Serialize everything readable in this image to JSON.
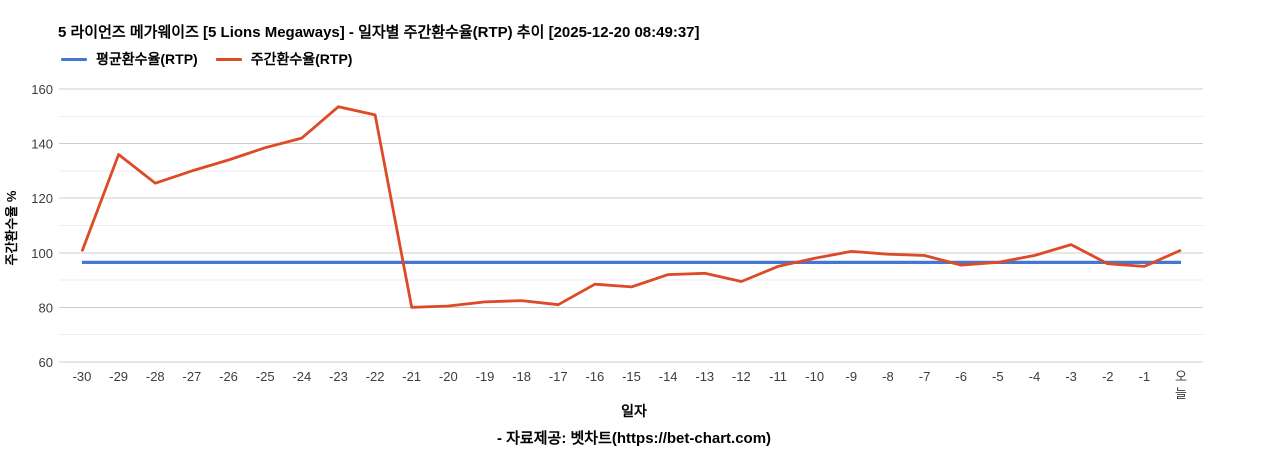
{
  "header": {
    "title": "5 라이언즈 메가웨이즈 [5 Lions Megaways] - 일자별 주간환수율(RTP) 추이 [2025-12-20 08:49:37]"
  },
  "legend": {
    "items": [
      {
        "label": "평균환수율(RTP)",
        "color": "#4377d6"
      },
      {
        "label": "주간환수율(RTP)",
        "color": "#dc4a26"
      }
    ]
  },
  "chart_data": {
    "type": "line",
    "title": "5 라이언즈 메가웨이즈 [5 Lions Megaways] - 일자별 주간환수율(RTP) 추이 [2025-12-20 08:49:37]",
    "categories": [
      "-30",
      "-29",
      "-28",
      "-27",
      "-26",
      "-25",
      "-24",
      "-23",
      "-22",
      "-21",
      "-20",
      "-19",
      "-18",
      "-17",
      "-16",
      "-15",
      "-14",
      "-13",
      "-12",
      "-11",
      "-10",
      "-9",
      "-8",
      "-7",
      "-6",
      "-5",
      "-4",
      "-3",
      "-2",
      "-1",
      "오늘"
    ],
    "series": [
      {
        "name": "평균환수율(RTP)",
        "color": "#4377d6",
        "values": [
          96.5,
          96.5,
          96.5,
          96.5,
          96.5,
          96.5,
          96.5,
          96.5,
          96.5,
          96.5,
          96.5,
          96.5,
          96.5,
          96.5,
          96.5,
          96.5,
          96.5,
          96.5,
          96.5,
          96.5,
          96.5,
          96.5,
          96.5,
          96.5,
          96.5,
          96.5,
          96.5,
          96.5,
          96.5,
          96.5,
          96.5
        ]
      },
      {
        "name": "주간환수율(RTP)",
        "color": "#dc4a26",
        "values": [
          100.5,
          136,
          125.5,
          130,
          134,
          138.5,
          142,
          153.5,
          150.5,
          80,
          80.5,
          82,
          82.5,
          81,
          88.5,
          87.5,
          92,
          92.5,
          89.5,
          95,
          98,
          100.5,
          99.5,
          99,
          95.5,
          96.5,
          99,
          103,
          96,
          95,
          101
        ]
      }
    ],
    "xlabel": "일자",
    "ylabel": "주간환수율 %",
    "ylim": [
      60,
      160
    ],
    "yticks": [
      60,
      80,
      100,
      120,
      140,
      160
    ],
    "minor_grid_step": 10,
    "grid": "on",
    "legend_position": "top-left",
    "colors": {
      "major_gridline": "#cccccc",
      "minor_gridline": "#ebebeb",
      "tick_text": "#3d3d3d"
    }
  },
  "footer": {
    "text": "- 자료제공: 벳차트(https://bet-chart.com)"
  }
}
